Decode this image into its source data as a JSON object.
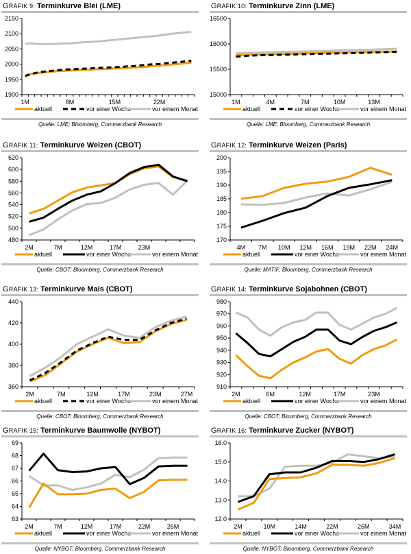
{
  "colors": {
    "aktuell": "#f39a10",
    "woche": "#000000",
    "monat": "#c0c0c0",
    "rule": "#c0c0c0"
  },
  "legend": {
    "aktuell": "aktuell",
    "woche": "vor einer Woche",
    "monat": "vor einem Monat"
  },
  "chart_data": [
    {
      "id": "g9",
      "type": "line",
      "prefix": "Grafik 9:",
      "title": "Terminkurve Blei (LME)",
      "source": "Quelle: LME; Bloomberg, Commerzbank Research",
      "ylim": [
        1900,
        2150
      ],
      "yticks": [
        1900,
        1950,
        2000,
        2050,
        2100,
        2150
      ],
      "ydecimals": 0,
      "n": 27,
      "xtick_count": 27,
      "xlabels": [
        {
          "i": 0,
          "t": "1M"
        },
        {
          "i": 7,
          "t": "8M"
        },
        {
          "i": 14,
          "t": "15M"
        },
        {
          "i": 21,
          "t": "22M"
        }
      ],
      "woche_dashed": true,
      "series": [
        {
          "key": "aktuell",
          "name": "aktuell",
          "values": [
            1963,
            1968,
            1971,
            1973,
            1975,
            1977,
            1978,
            1979,
            1980,
            1981,
            1982,
            1983,
            1984,
            1985,
            1986,
            1987,
            1988,
            1989,
            1990,
            1992,
            1994,
            1995,
            1997,
            1999,
            2001,
            2003,
            2005
          ]
        },
        {
          "key": "woche",
          "name": "vor einer Woche",
          "values": [
            1961,
            1968,
            1973,
            1976,
            1978,
            1980,
            1982,
            1983,
            1984,
            1985,
            1986,
            1987,
            1988,
            1989,
            1990,
            1991,
            1993,
            1994,
            1996,
            1998,
            2000,
            2001,
            2003,
            2005,
            2007,
            2009,
            2011
          ]
        },
        {
          "key": "monat",
          "name": "vor einem Monat",
          "values": [
            2067,
            2068,
            2066,
            2066,
            2066,
            2067,
            2068,
            2068,
            2070,
            2072,
            2073,
            2074,
            2076,
            2078,
            2080,
            2082,
            2084,
            2086,
            2088,
            2090,
            2092,
            2094,
            2097,
            2100,
            2102,
            2104,
            2106
          ]
        }
      ]
    },
    {
      "id": "g10",
      "type": "line",
      "prefix": "Grafik 10:",
      "title": "Terminkurve Zinn (LME)",
      "source": "Quelle: LME; Bloomberg, Commerzbank Research",
      "ylim": [
        15000,
        16500
      ],
      "yticks": [
        15000,
        15500,
        16000,
        16500
      ],
      "ydecimals": 0,
      "n": 15,
      "xtick_count": 15,
      "xlabels": [
        {
          "i": 0,
          "t": "1M"
        },
        {
          "i": 3,
          "t": "4M"
        },
        {
          "i": 6,
          "t": "7M"
        },
        {
          "i": 9,
          "t": "10M"
        },
        {
          "i": 12,
          "t": "13M"
        }
      ],
      "woche_dashed": true,
      "series": [
        {
          "key": "aktuell",
          "name": "aktuell",
          "values": [
            15775,
            15782,
            15788,
            15794,
            15800,
            15806,
            15812,
            15818,
            15823,
            15828,
            15833,
            15838,
            15842,
            15846,
            15850
          ]
        },
        {
          "key": "woche",
          "name": "vor einer Woche",
          "values": [
            15748,
            15765,
            15775,
            15780,
            15785,
            15790,
            15797,
            15803,
            15808,
            15813,
            15818,
            15823,
            15830,
            15838,
            15846
          ]
        },
        {
          "key": "monat",
          "name": "vor einem Monat",
          "values": [
            15815,
            15822,
            15828,
            15834,
            15840,
            15846,
            15852,
            15858,
            15864,
            15870,
            15876,
            15882,
            15888,
            15895,
            15905
          ]
        }
      ]
    },
    {
      "id": "g11",
      "type": "line",
      "prefix": "Grafik 11:",
      "title": "Terminkurve Weizen (CBOT)",
      "source": "Quelle: CBOT; Bloomberg, Commerzbank Research",
      "ylim": [
        480,
        620
      ],
      "yticks": [
        480,
        500,
        520,
        540,
        560,
        580,
        600,
        620
      ],
      "ydecimals": 0,
      "n": 12,
      "xtick_count": 12,
      "xlabels": [
        {
          "i": 0,
          "t": "2M"
        },
        {
          "i": 2,
          "t": "7M"
        },
        {
          "i": 4,
          "t": "12M"
        },
        {
          "i": 6,
          "t": "17M"
        },
        {
          "i": 8,
          "t": "23M"
        }
      ],
      "woche_dashed": false,
      "series": [
        {
          "key": "aktuell",
          "name": "aktuell",
          "values": [
            525,
            533,
            547,
            561,
            569,
            573,
            577,
            592,
            602,
            605,
            587,
            581
          ]
        },
        {
          "key": "woche",
          "name": "vor einer Woche",
          "values": [
            511,
            518,
            533,
            547,
            557,
            563,
            577,
            594,
            604,
            608,
            588,
            580
          ]
        },
        {
          "key": "monat",
          "name": "vor einem Monat",
          "values": [
            488,
            498,
            515,
            530,
            541,
            543,
            552,
            566,
            574,
            577,
            557,
            581
          ]
        }
      ]
    },
    {
      "id": "g12",
      "type": "line",
      "prefix": "Grafik 12:",
      "title": "Terminkurve Weizen (Paris)",
      "source": "Quelle: MATIF; Bloomberg, Commerzbank Research",
      "ylim": [
        170,
        200
      ],
      "yticks": [
        170,
        175,
        180,
        185,
        190,
        195,
        200
      ],
      "ydecimals": 0,
      "n": 8,
      "xtick_count": 8,
      "xlabels": [
        {
          "i": 0,
          "t": "4M"
        },
        {
          "i": 1,
          "t": "7M"
        },
        {
          "i": 2,
          "t": "10M"
        },
        {
          "i": 3,
          "t": "12M"
        },
        {
          "i": 4,
          "t": "16M"
        },
        {
          "i": 5,
          "t": "19M"
        },
        {
          "i": 6,
          "t": "22M"
        },
        {
          "i": 7,
          "t": "24M"
        }
      ],
      "woche_dashed": false,
      "series": [
        {
          "key": "aktuell",
          "name": "aktuell",
          "values": [
            185.0,
            186.0,
            189.0,
            190.5,
            191.3,
            193.0,
            196.3,
            193.8
          ]
        },
        {
          "key": "woche",
          "name": "vor einer Woche",
          "values": [
            174.5,
            177.0,
            179.8,
            181.8,
            186.0,
            189.0,
            190.3,
            191.8
          ]
        },
        {
          "key": "monat",
          "name": "vor einem Monat",
          "values": [
            183.0,
            182.8,
            183.5,
            185.5,
            187.0,
            186.2,
            188.5,
            191.2
          ]
        }
      ]
    },
    {
      "id": "g13",
      "type": "line",
      "prefix": "Grafik 13:",
      "title": "Terminkurve Mais (CBOT)",
      "source": "Quelle: CBOT; Bloomberg, Commerzbank Research",
      "ylim": [
        360,
        440
      ],
      "yticks": [
        360,
        380,
        400,
        420,
        440
      ],
      "ydecimals": 0,
      "n": 11,
      "xtick_count": 11,
      "xlabels": [
        {
          "i": 0,
          "t": "2M"
        },
        {
          "i": 2,
          "t": "7M"
        },
        {
          "i": 4,
          "t": "12M"
        },
        {
          "i": 6,
          "t": "17M"
        },
        {
          "i": 8,
          "t": "23M"
        },
        {
          "i": 10,
          "t": "27M"
        }
      ],
      "woche_dashed": true,
      "series": [
        {
          "key": "aktuell",
          "name": "aktuell",
          "values": [
            365,
            371,
            382,
            393,
            400,
            406,
            401,
            402,
            412,
            419,
            423
          ]
        },
        {
          "key": "woche",
          "name": "vor einer Woche",
          "values": [
            366,
            373,
            383,
            394,
            401,
            407,
            404,
            404,
            413,
            420,
            424
          ]
        },
        {
          "key": "monat",
          "name": "vor einem Monat",
          "values": [
            370,
            378,
            388,
            400,
            407,
            414,
            408,
            406,
            416,
            422,
            426
          ]
        }
      ]
    },
    {
      "id": "g14",
      "type": "line",
      "prefix": "Grafik 14:",
      "title": "Terminkurve Sojabohnen (CBOT)",
      "source": "Quelle: CBOT; Bloomberg, Commerzbank Research",
      "ylim": [
        910,
        980
      ],
      "yticks": [
        910,
        920,
        930,
        940,
        950,
        960,
        970,
        980
      ],
      "ydecimals": 0,
      "n": 15,
      "xtick_count": 15,
      "xlabels": [
        {
          "i": 0,
          "t": "2M"
        },
        {
          "i": 3,
          "t": "6M"
        },
        {
          "i": 6,
          "t": "12M"
        },
        {
          "i": 9,
          "t": "17M"
        },
        {
          "i": 12,
          "t": "23M"
        }
      ],
      "woche_dashed": false,
      "series": [
        {
          "key": "aktuell",
          "name": "aktuell",
          "values": [
            936,
            927,
            919,
            917,
            924,
            930,
            934,
            939,
            941,
            933,
            929,
            936,
            941,
            944,
            949
          ]
        },
        {
          "key": "woche",
          "name": "vor einer Woche",
          "values": [
            954,
            946,
            937,
            935,
            941,
            947,
            951,
            957,
            957,
            948,
            945,
            951,
            956,
            959,
            963
          ]
        },
        {
          "key": "monat",
          "name": "vor einem Monat",
          "values": [
            971,
            967,
            957,
            952,
            959,
            963,
            965,
            971,
            971,
            961,
            957,
            962,
            967,
            970,
            975
          ]
        }
      ]
    },
    {
      "id": "g15",
      "type": "line",
      "prefix": "Grafik 15:",
      "title": "Terminkurve Baumwolle (NYBOT)",
      "source": "Quelle: NYBOT; Bloomberg, Commerzbank Research",
      "ylim": [
        63,
        69
      ],
      "yticks": [
        63,
        64,
        65,
        66,
        67,
        68,
        69
      ],
      "ydecimals": 0,
      "n": 12,
      "xtick_count": 12,
      "xlabels": [
        {
          "i": 0,
          "t": "2M"
        },
        {
          "i": 2,
          "t": "7M"
        },
        {
          "i": 4,
          "t": "12M"
        },
        {
          "i": 6,
          "t": "17M"
        },
        {
          "i": 8,
          "t": "22M"
        },
        {
          "i": 10,
          "t": "26M"
        }
      ],
      "woche_dashed": false,
      "series": [
        {
          "key": "aktuell",
          "name": "aktuell",
          "values": [
            63.9,
            65.8,
            64.95,
            64.95,
            65.0,
            65.3,
            65.4,
            64.65,
            65.15,
            66.05,
            66.1,
            66.1
          ]
        },
        {
          "key": "woche",
          "name": "vor einer Woche",
          "values": [
            66.8,
            68.15,
            66.85,
            66.7,
            66.75,
            67.0,
            67.1,
            65.75,
            66.25,
            67.15,
            67.2,
            67.2
          ]
        },
        {
          "key": "monat",
          "name": "vor einem Monat",
          "values": [
            66.4,
            65.65,
            65.65,
            65.3,
            65.5,
            65.8,
            66.5,
            66.3,
            66.9,
            67.8,
            67.85,
            67.85
          ]
        }
      ]
    },
    {
      "id": "g16",
      "type": "line",
      "prefix": "Grafik 16:",
      "title": "Terminkurve Zucker (NYBOT)",
      "source": "Quelle: NYBOT; Bloomberg, Commerzbank Research",
      "ylim": [
        12.0,
        16.0
      ],
      "yticks": [
        12.0,
        13.0,
        14.0,
        15.0,
        16.0
      ],
      "ydecimals": 1,
      "n": 11,
      "xtick_count": 11,
      "xlabels": [
        {
          "i": 0,
          "t": "2M"
        },
        {
          "i": 2,
          "t": "10M"
        },
        {
          "i": 4,
          "t": "14M"
        },
        {
          "i": 6,
          "t": "22M"
        },
        {
          "i": 8,
          "t": "26M"
        },
        {
          "i": 10,
          "t": "34M"
        }
      ],
      "woche_dashed": false,
      "series": [
        {
          "key": "aktuell",
          "name": "aktuell",
          "values": [
            12.5,
            12.85,
            14.1,
            14.15,
            14.2,
            14.4,
            14.85,
            14.85,
            14.8,
            14.95,
            15.2
          ]
        },
        {
          "key": "woche",
          "name": "vor einer Woche",
          "values": [
            12.9,
            13.2,
            14.35,
            14.45,
            14.45,
            14.7,
            15.05,
            15.05,
            15.0,
            15.15,
            15.4
          ]
        },
        {
          "key": "monat",
          "name": "vor einem Monat",
          "values": [
            13.2,
            13.2,
            13.6,
            14.75,
            14.8,
            14.8,
            14.95,
            15.4,
            15.3,
            15.2,
            15.3
          ]
        }
      ]
    }
  ]
}
